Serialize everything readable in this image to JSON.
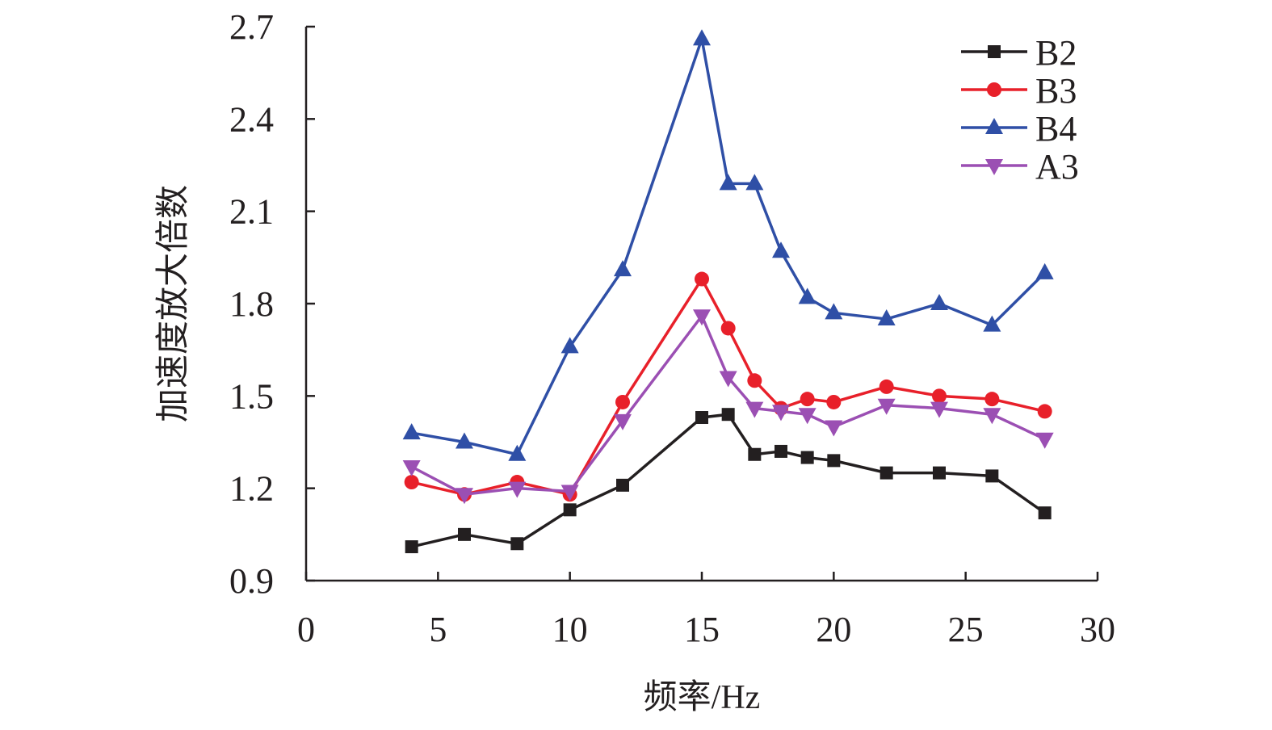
{
  "chart_data": {
    "type": "line",
    "title": "",
    "xlabel": "频率/Hz",
    "ylabel": "加速度放大倍数",
    "xlim": [
      0,
      30
    ],
    "ylim": [
      0.9,
      2.7
    ],
    "xticks": [
      "0",
      "5",
      "10",
      "15",
      "20",
      "25",
      "30"
    ],
    "yticks": [
      "0.9",
      "1.2",
      "1.5",
      "1.8",
      "2.1",
      "2.4",
      "2.7"
    ],
    "grid": false,
    "legend_position": "top-right",
    "x": [
      4,
      6,
      8,
      10,
      12,
      15,
      16,
      17,
      18,
      19,
      20,
      22,
      24,
      26,
      28
    ],
    "series": [
      {
        "name": "B2",
        "color": "#231f20",
        "marker": "square",
        "values": [
          1.01,
          1.05,
          1.02,
          1.13,
          1.21,
          1.43,
          1.44,
          1.31,
          1.32,
          1.3,
          1.29,
          1.25,
          1.25,
          1.24,
          1.12
        ]
      },
      {
        "name": "B3",
        "color": "#e8202a",
        "marker": "circle",
        "values": [
          1.22,
          1.18,
          1.22,
          1.18,
          1.48,
          1.88,
          1.72,
          1.55,
          1.46,
          1.49,
          1.48,
          1.53,
          1.5,
          1.49,
          1.45
        ]
      },
      {
        "name": "B4",
        "color": "#2f4fa6",
        "marker": "triangle-up",
        "values": [
          1.38,
          1.35,
          1.31,
          1.66,
          1.91,
          2.66,
          2.19,
          2.19,
          1.97,
          1.82,
          1.77,
          1.75,
          1.8,
          1.73,
          1.9
        ]
      },
      {
        "name": "A3",
        "color": "#9b4fb3",
        "marker": "triangle-down",
        "values": [
          1.27,
          1.18,
          1.2,
          1.19,
          1.42,
          1.76,
          1.56,
          1.46,
          1.45,
          1.44,
          1.4,
          1.47,
          1.46,
          1.44,
          1.36
        ]
      }
    ]
  }
}
